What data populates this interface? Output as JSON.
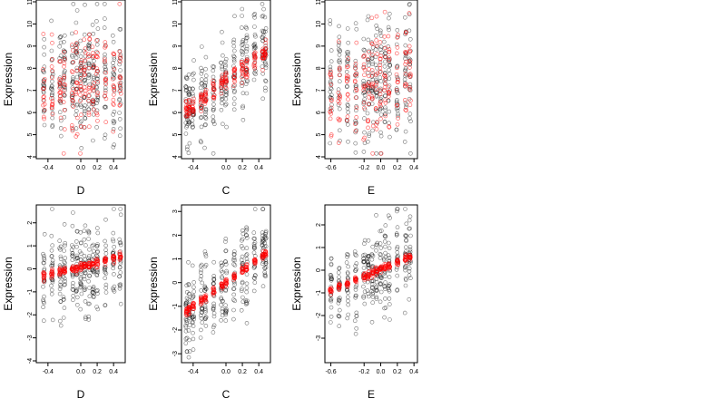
{
  "chart_data": [
    {
      "type": "scatter",
      "xlabel": "D",
      "ylabel": "Expression",
      "xlim": [
        -0.52,
        0.52
      ],
      "ylim": [
        4,
        11
      ],
      "x_ticks": [
        -0.4,
        0.0,
        0.2,
        0.4
      ],
      "x_tick_labels": [
        "-0.4",
        "0.0",
        "0.2",
        "0.4"
      ],
      "y_ticks": [
        4,
        5,
        6,
        7,
        8,
        9,
        10,
        11
      ],
      "y_tick_labels": [
        "4",
        "5",
        "6",
        "7",
        "8",
        "9",
        "10",
        "11"
      ],
      "x_groups": [
        -0.45,
        -0.35,
        -0.25,
        -0.2,
        -0.1,
        -0.05,
        0.0,
        0.05,
        0.1,
        0.15,
        0.2,
        0.3,
        0.4,
        0.48
      ],
      "series": [
        {
          "color": "#000000",
          "style": "open-circle",
          "trend": {
            "x0": -0.45,
            "y0": 7.5,
            "x1": 0.48,
            "y1": 7.6
          },
          "spread": 1.3
        },
        {
          "color": "#ff0000",
          "style": "open-circle",
          "trend": {
            "x0": -0.45,
            "y0": 7.3,
            "x1": 0.48,
            "y1": 7.4
          },
          "spread": 1.1
        }
      ]
    },
    {
      "type": "scatter",
      "xlabel": "C",
      "ylabel": "Expression",
      "xlim": [
        -0.52,
        0.52
      ],
      "ylim": [
        4,
        11
      ],
      "x_ticks": [
        -0.4,
        0.0,
        0.2,
        0.4
      ],
      "x_tick_labels": [
        "-0.4",
        "0.0",
        "0.2",
        "0.4"
      ],
      "y_ticks": [
        4,
        5,
        6,
        7,
        8,
        9,
        10,
        11
      ],
      "y_tick_labels": [
        "4",
        "5",
        "6",
        "7",
        "8",
        "9",
        "10",
        "11"
      ],
      "x_groups": [
        -0.48,
        -0.45,
        -0.4,
        -0.3,
        -0.25,
        -0.15,
        -0.05,
        0.0,
        0.1,
        0.2,
        0.25,
        0.35,
        0.45,
        0.48
      ],
      "series": [
        {
          "color": "#000000",
          "style": "open-circle",
          "trend": {
            "x0": -0.48,
            "y0": 6.0,
            "x1": 0.48,
            "y1": 8.8
          },
          "spread": 1.0
        },
        {
          "color": "#ff0000",
          "style": "open-circle",
          "trend": {
            "x0": -0.48,
            "y0": 6.1,
            "x1": 0.48,
            "y1": 8.7
          },
          "spread": 0.25
        }
      ]
    },
    {
      "type": "scatter",
      "xlabel": "E",
      "ylabel": "Expression",
      "xlim": [
        -0.65,
        0.42
      ],
      "ylim": [
        4,
        11
      ],
      "x_ticks": [
        -0.6,
        -0.2,
        0.0,
        0.2,
        0.4
      ],
      "x_tick_labels": [
        "-0.6",
        "-0.2",
        "0.0",
        "0.2",
        "0.4"
      ],
      "y_ticks": [
        4,
        5,
        6,
        7,
        8,
        9,
        10,
        11
      ],
      "y_tick_labels": [
        "4",
        "5",
        "6",
        "7",
        "8",
        "9",
        "10",
        "11"
      ],
      "x_groups": [
        -0.6,
        -0.5,
        -0.4,
        -0.3,
        -0.2,
        -0.15,
        -0.1,
        -0.05,
        0.0,
        0.05,
        0.1,
        0.2,
        0.3,
        0.35
      ],
      "series": [
        {
          "color": "#000000",
          "style": "open-circle",
          "trend": {
            "x0": -0.6,
            "y0": 7.3,
            "x1": 0.35,
            "y1": 7.4
          },
          "spread": 1.4
        },
        {
          "color": "#ff0000",
          "style": "open-circle",
          "trend": {
            "x0": -0.6,
            "y0": 7.0,
            "x1": 0.35,
            "y1": 7.6
          },
          "spread": 1.2
        }
      ]
    },
    {
      "type": "scatter",
      "xlabel": "D",
      "ylabel": "Expression",
      "xlim": [
        -0.52,
        0.52
      ],
      "ylim": [
        -4,
        2.7
      ],
      "x_ticks": [
        -0.4,
        0.0,
        0.2,
        0.4
      ],
      "x_tick_labels": [
        "-0.4",
        "0.0",
        "0.2",
        "0.4"
      ],
      "y_ticks": [
        -4,
        -3,
        -2,
        -1,
        0,
        1,
        2
      ],
      "y_tick_labels": [
        "-4",
        "-3",
        "-2",
        "-1",
        "0",
        "1",
        "2"
      ],
      "x_groups": [
        -0.45,
        -0.35,
        -0.25,
        -0.2,
        -0.1,
        -0.05,
        0.0,
        0.05,
        0.1,
        0.15,
        0.2,
        0.3,
        0.4,
        0.48
      ],
      "series": [
        {
          "color": "#000000",
          "style": "open-circle",
          "trend": {
            "x0": -0.45,
            "y0": -0.3,
            "x1": 0.48,
            "y1": 0.5
          },
          "spread": 0.9
        },
        {
          "color": "#ff0000",
          "style": "open-circle",
          "trend": {
            "x0": -0.45,
            "y0": -0.3,
            "x1": 0.48,
            "y1": 0.5
          },
          "spread": 0.08
        }
      ]
    },
    {
      "type": "scatter",
      "xlabel": "C",
      "ylabel": "Expression",
      "xlim": [
        -0.52,
        0.52
      ],
      "ylim": [
        -3.3,
        3.2
      ],
      "x_ticks": [
        -0.4,
        0.0,
        0.2,
        0.4
      ],
      "x_tick_labels": [
        "-0.4",
        "0.0",
        "0.2",
        "0.4"
      ],
      "y_ticks": [
        -3,
        -2,
        -1,
        0,
        1,
        2,
        3
      ],
      "y_tick_labels": [
        "-3",
        "-2",
        "-1",
        "0",
        "1",
        "2",
        "3"
      ],
      "x_groups": [
        -0.48,
        -0.45,
        -0.4,
        -0.3,
        -0.25,
        -0.15,
        -0.05,
        0.0,
        0.1,
        0.2,
        0.25,
        0.35,
        0.45,
        0.48
      ],
      "series": [
        {
          "color": "#000000",
          "style": "open-circle",
          "trend": {
            "x0": -0.48,
            "y0": -1.3,
            "x1": 0.48,
            "y1": 1.3
          },
          "spread": 0.9
        },
        {
          "color": "#ff0000",
          "style": "open-circle",
          "trend": {
            "x0": -0.48,
            "y0": -1.2,
            "x1": 0.48,
            "y1": 1.2
          },
          "spread": 0.08
        }
      ]
    },
    {
      "type": "scatter",
      "xlabel": "E",
      "ylabel": "Expression",
      "xlim": [
        -0.65,
        0.42
      ],
      "ylim": [
        -4,
        2.8
      ],
      "x_ticks": [
        -0.6,
        -0.2,
        0.0,
        0.2,
        0.4
      ],
      "x_tick_labels": [
        "-0.6",
        "-0.2",
        "0.0",
        "0.2",
        "0.4"
      ],
      "y_ticks": [
        -3,
        -2,
        -1,
        0,
        1,
        2
      ],
      "y_tick_labels": [
        "-3",
        "-2",
        "-1",
        "0",
        "1",
        "2"
      ],
      "x_groups": [
        -0.6,
        -0.5,
        -0.4,
        -0.3,
        -0.2,
        -0.15,
        -0.1,
        -0.05,
        0.0,
        0.05,
        0.1,
        0.2,
        0.3,
        0.35
      ],
      "series": [
        {
          "color": "#000000",
          "style": "open-circle",
          "trend": {
            "x0": -0.6,
            "y0": -0.9,
            "x1": 0.35,
            "y1": 0.6
          },
          "spread": 0.9
        },
        {
          "color": "#ff0000",
          "style": "open-circle",
          "trend": {
            "x0": -0.6,
            "y0": -0.9,
            "x1": 0.35,
            "y1": 0.6
          },
          "spread": 0.08
        }
      ]
    }
  ]
}
